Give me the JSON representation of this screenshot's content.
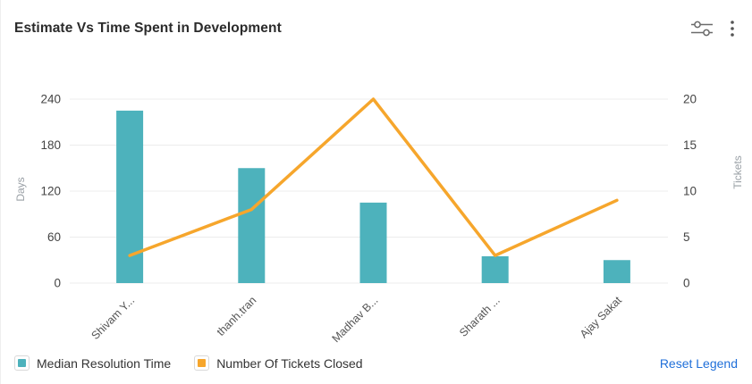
{
  "header": {
    "title": "Estimate Vs Time Spent in Development",
    "filter_icon": "sliders-icon",
    "menu_icon": "kebab-menu-icon"
  },
  "legend": {
    "reset_label": "Reset Legend",
    "position": "bottom-left"
  },
  "colors": {
    "bar_teal": "#4db2bc",
    "line_orange": "#f6a62c",
    "link_blue": "#1f6fd9",
    "gridline": "#ececec",
    "tick_text": "#444444",
    "category_text": "#555555"
  },
  "chart_data": {
    "type": "bar+line",
    "title": "Estimate Vs Time Spent in Development",
    "categories": [
      "Shivam Y...",
      "thanh.tran",
      "Madhav B...",
      "Sharath ...",
      "Ajay Sakat"
    ],
    "series": [
      {
        "name": "Median Resolution Time",
        "type": "bar",
        "yaxis": "left",
        "color": "#4db2bc",
        "values": [
          225,
          150,
          105,
          35,
          30
        ]
      },
      {
        "name": "Number Of Tickets Closed",
        "type": "line",
        "yaxis": "right",
        "color": "#f6a62c",
        "values": [
          3,
          8,
          20,
          3,
          9
        ]
      }
    ],
    "left_axis": {
      "label": "Days",
      "min": 0,
      "max": 240,
      "ticks": [
        0,
        60,
        120,
        180,
        240
      ]
    },
    "right_axis": {
      "label": "Tickets",
      "min": 0,
      "max": 20,
      "ticks": [
        0,
        5,
        10,
        15,
        20
      ]
    },
    "grid": "horizontal-only",
    "x_label_rotation": -45,
    "legend_position": "bottom-left"
  }
}
